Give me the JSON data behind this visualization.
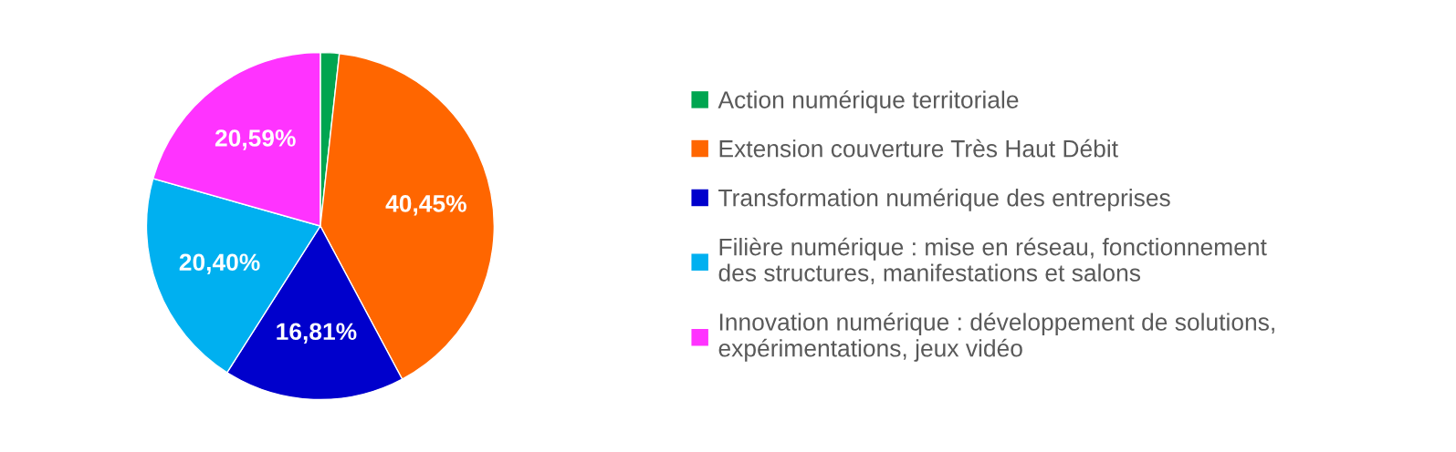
{
  "chart_data": {
    "type": "pie",
    "categories": [
      "Action numérique territoriale",
      "Extension couverture Très Haut Débit",
      "Transformation numérique des entreprises",
      "Filière numérique : mise en réseau, fonctionnement\ndes structures, manifestations et salons",
      "Innovation numérique : développement de solutions,\nexpérimentations, jeux vidéo"
    ],
    "values": [
      1.75,
      40.45,
      16.81,
      20.4,
      20.59
    ],
    "value_labels": [
      null,
      "40,45%",
      "16,81%",
      "20,40%",
      "20,59%"
    ],
    "colors": [
      "#00a550",
      "#ff6600",
      "#0000cc",
      "#00b0f0",
      "#ff33ff"
    ],
    "legend": "right"
  }
}
